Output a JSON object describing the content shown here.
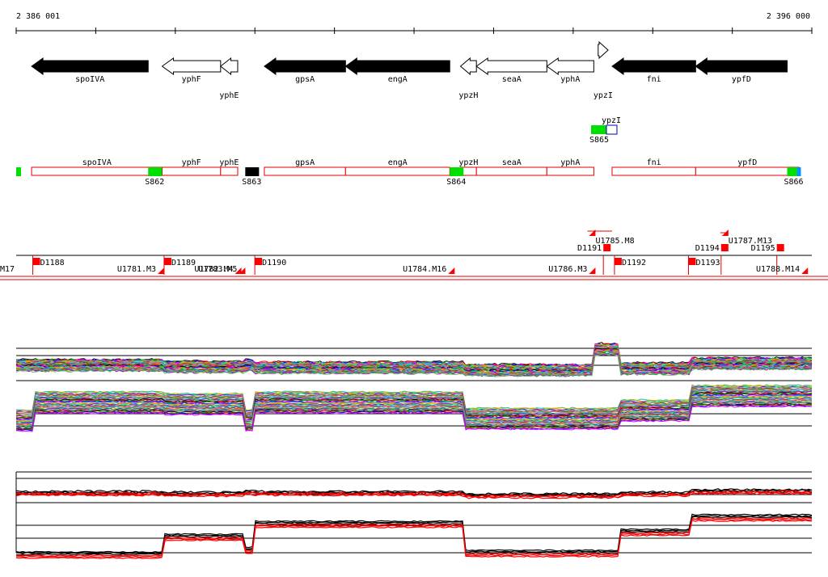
{
  "coords": {
    "start": "2 386 001",
    "end": "2 396 000"
  },
  "genes": [
    {
      "name": "spoIVA",
      "strand": "-",
      "filled": true,
      "start": 2386195,
      "end": 2387660,
      "label_below": false
    },
    {
      "name": "yphF",
      "strand": "-",
      "filled": false,
      "start": 2387835,
      "end": 2388570,
      "label_below": false
    },
    {
      "name": "yphE",
      "strand": "-",
      "filled": false,
      "start": 2388570,
      "end": 2388785,
      "label_below": true
    },
    {
      "name": "gpsA",
      "strand": "-",
      "filled": true,
      "start": 2389120,
      "end": 2390140,
      "label_below": false
    },
    {
      "name": "engA",
      "strand": "-",
      "filled": true,
      "start": 2390140,
      "end": 2391450,
      "label_below": false
    },
    {
      "name": "ypzH",
      "strand": "-",
      "filled": false,
      "start": 2391585,
      "end": 2391785,
      "label_below": true
    },
    {
      "name": "seaA",
      "strand": "-",
      "filled": false,
      "start": 2391785,
      "end": 2392670,
      "label_below": false
    },
    {
      "name": "yphA",
      "strand": "-",
      "filled": false,
      "start": 2392670,
      "end": 2393260,
      "label_below": false
    },
    {
      "name": "ypzI",
      "strand": "+",
      "filled": false,
      "start": 2393315,
      "end": 2393440,
      "label_below": true
    },
    {
      "name": "fni",
      "strand": "-",
      "filled": true,
      "start": 2393490,
      "end": 2394540,
      "label_below": false
    },
    {
      "name": "ypfD",
      "strand": "-",
      "filled": true,
      "start": 2394540,
      "end": 2395690,
      "label_below": false
    }
  ],
  "ypzI_block": {
    "label": "ypzI",
    "feature": "S865"
  },
  "transcripts": [
    {
      "name": "spoIVA",
      "start": 2386195,
      "end": 2387835
    },
    {
      "name": "yphF",
      "start": 2387835,
      "end": 2388570
    },
    {
      "name": "yphE",
      "start": 2388570,
      "end": 2388785
    },
    {
      "name": "gpsA",
      "start": 2389120,
      "end": 2390140
    },
    {
      "name": "engA",
      "start": 2390140,
      "end": 2391450
    },
    {
      "name": "ypzH",
      "start": 2391585,
      "end": 2391785
    },
    {
      "name": "seaA",
      "start": 2391785,
      "end": 2392670
    },
    {
      "name": "yphA",
      "start": 2392670,
      "end": 2393260
    },
    {
      "name": "fni",
      "start": 2393490,
      "end": 2394540
    },
    {
      "name": "ypfD",
      "start": 2394540,
      "end": 2395840
    }
  ],
  "sigma_sites": [
    {
      "name": "S862",
      "pos": 2387660
    },
    {
      "name": "S863",
      "pos": 2388880
    },
    {
      "name": "S864",
      "pos": 2391450
    },
    {
      "name": "S866",
      "pos": 2395690
    }
  ],
  "segments": {
    "downshifts": [
      {
        "name": "D1188",
        "pos": 2386210
      },
      {
        "name": "D1189",
        "pos": 2387860
      },
      {
        "name": "D1190",
        "pos": 2389000
      },
      {
        "name": "D1191",
        "pos": 2393380
      },
      {
        "name": "D1192",
        "pos": 2393520
      },
      {
        "name": "D1193",
        "pos": 2394450
      },
      {
        "name": "D1194",
        "pos": 2394860
      },
      {
        "name": "D1195",
        "pos": 2395560
      }
    ],
    "upshifts": [
      {
        "name": "U1781.M3",
        "pos": 2387780
      },
      {
        "name": "U1782.M4",
        "pos": 2388750
      },
      {
        "name": "U1783.M5",
        "pos": 2388800
      },
      {
        "name": "U1784.M16",
        "pos": 2391430
      },
      {
        "name": "U1785.M8",
        "pos": 2393200
      },
      {
        "name": "U1786.M3",
        "pos": 2393200
      },
      {
        "name": "U1787.M13",
        "pos": 2394870
      },
      {
        "name": "U1788.M14",
        "pos": 2395870
      }
    ],
    "edge_label": "M17"
  },
  "expression_colors": [
    "#000000",
    "#ff0000",
    "#00b000",
    "#0000ff",
    "#ff00ff",
    "#00c0c0",
    "#c0c000",
    "#ff8000",
    "#8000ff",
    "#00ff80",
    "#808080",
    "#804000",
    "#ff6080",
    "#40a0ff",
    "#a0a000",
    "#008080",
    "#c000c0",
    "#60c060"
  ],
  "summary_colors": [
    "#000000",
    "#ff0000"
  ]
}
